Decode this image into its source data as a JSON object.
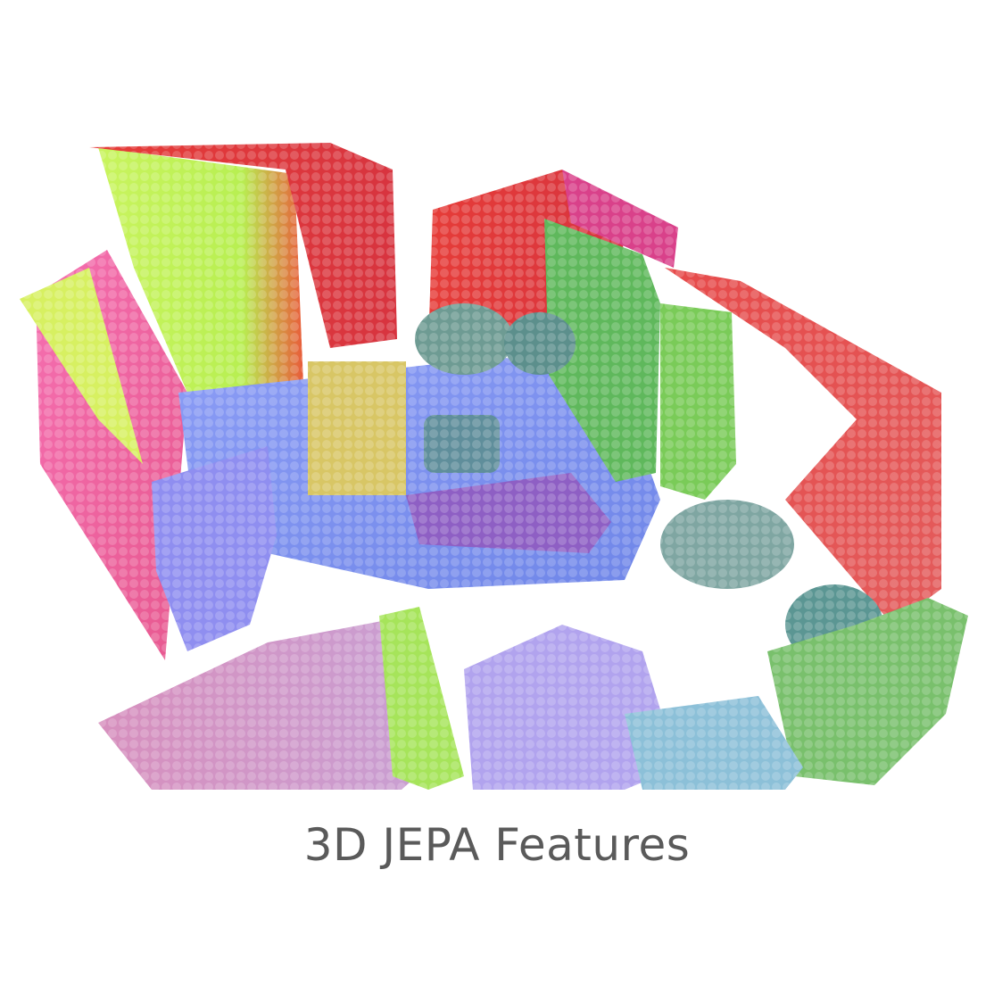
{
  "caption": "3D JEPA Features",
  "colors": {
    "caption_text": "#5a5a5a",
    "background": "#ffffff",
    "wall_red": "#e23a3a",
    "wall_pink": "#f06aa8",
    "wall_yellow_green": "#c6f25a",
    "floor_blue": "#7f8ff2",
    "furniture_teal": "#6aa7a0",
    "plant_green": "#62c45e",
    "rug_purple": "#9c6ad2",
    "rug_lavender": "#b7a3f0"
  }
}
